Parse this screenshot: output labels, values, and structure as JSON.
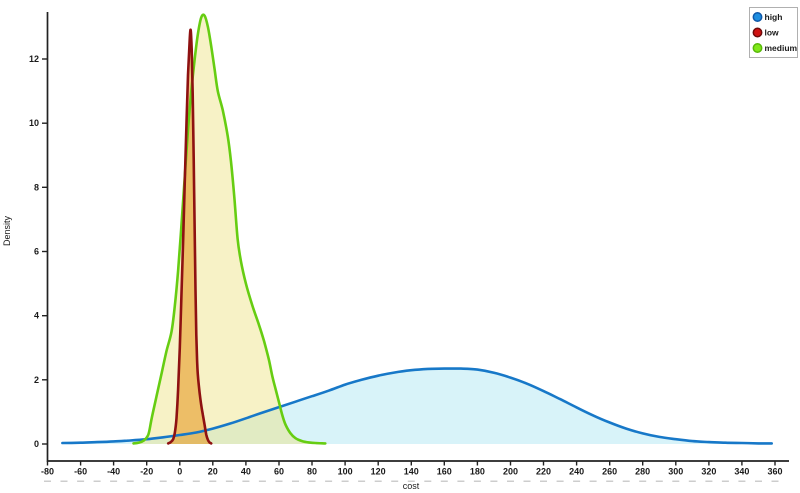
{
  "chart_data": {
    "type": "area",
    "title": "",
    "xlabel": "cost",
    "ylabel": "Density",
    "grid": false,
    "x_axis": {
      "min": -80,
      "max": 360,
      "tick_step": 20,
      "minor_step": 10,
      "ticks": [
        -80,
        -60,
        -40,
        -20,
        0,
        20,
        40,
        60,
        80,
        100,
        120,
        140,
        160,
        180,
        200,
        220,
        240,
        260,
        280,
        300,
        320,
        340,
        360
      ]
    },
    "y_axis": {
      "min": 0,
      "max": 13.8,
      "tick_step": 2,
      "ticks": [
        0,
        2,
        4,
        6,
        8,
        10,
        12
      ]
    },
    "legend": {
      "position": "top-right",
      "entries": [
        {
          "label": "high",
          "dot_color": "#1e8ee0",
          "ring_color": "#0f58a8"
        },
        {
          "label": "low",
          "dot_color": "#d01212",
          "ring_color": "#6e0a0a"
        },
        {
          "label": "medium",
          "dot_color": "#80e81a",
          "ring_color": "#58b808"
        }
      ]
    },
    "axis_color": "#222222",
    "minor_dash_color": "#cdcdcd",
    "series": [
      {
        "name": "high",
        "line_color": "#1778c8",
        "fill_color": "rgba(125,216,235,0.30)",
        "points": [
          [
            -71,
            0.03
          ],
          [
            -60,
            0.04
          ],
          [
            -50,
            0.06
          ],
          [
            -40,
            0.08
          ],
          [
            -30,
            0.11
          ],
          [
            -20,
            0.15
          ],
          [
            -10,
            0.21
          ],
          [
            0,
            0.28
          ],
          [
            10,
            0.36
          ],
          [
            20,
            0.48
          ],
          [
            30,
            0.63
          ],
          [
            40,
            0.8
          ],
          [
            50,
            0.98
          ],
          [
            60,
            1.15
          ],
          [
            70,
            1.32
          ],
          [
            80,
            1.49
          ],
          [
            90,
            1.66
          ],
          [
            100,
            1.85
          ],
          [
            110,
            2.0
          ],
          [
            120,
            2.13
          ],
          [
            130,
            2.23
          ],
          [
            140,
            2.3
          ],
          [
            150,
            2.34
          ],
          [
            160,
            2.35
          ],
          [
            170,
            2.35
          ],
          [
            180,
            2.32
          ],
          [
            190,
            2.22
          ],
          [
            200,
            2.07
          ],
          [
            210,
            1.88
          ],
          [
            220,
            1.65
          ],
          [
            230,
            1.4
          ],
          [
            240,
            1.14
          ],
          [
            250,
            0.89
          ],
          [
            260,
            0.67
          ],
          [
            270,
            0.48
          ],
          [
            280,
            0.33
          ],
          [
            290,
            0.22
          ],
          [
            300,
            0.15
          ],
          [
            310,
            0.09
          ],
          [
            320,
            0.06
          ],
          [
            330,
            0.04
          ],
          [
            340,
            0.03
          ],
          [
            350,
            0.02
          ],
          [
            358,
            0.02
          ]
        ]
      },
      {
        "name": "medium",
        "line_color": "#66cd12",
        "fill_color": "rgba(238,227,128,0.45)",
        "points": [
          [
            -28,
            0.02
          ],
          [
            -25,
            0.04
          ],
          [
            -22,
            0.1
          ],
          [
            -19,
            0.3
          ],
          [
            -17,
            0.8
          ],
          [
            -14,
            1.5
          ],
          [
            -11,
            2.2
          ],
          [
            -8,
            2.9
          ],
          [
            -5,
            3.5
          ],
          [
            -3,
            4.3
          ],
          [
            -1,
            5.4
          ],
          [
            1,
            6.8
          ],
          [
            3,
            8.3
          ],
          [
            5,
            9.8
          ],
          [
            7,
            11.0
          ],
          [
            9,
            12.0
          ],
          [
            11,
            12.8
          ],
          [
            13,
            13.3
          ],
          [
            15,
            13.35
          ],
          [
            17,
            13.0
          ],
          [
            19,
            12.4
          ],
          [
            21,
            11.7
          ],
          [
            23,
            11.0
          ],
          [
            26,
            10.4
          ],
          [
            29,
            9.6
          ],
          [
            31,
            8.8
          ],
          [
            33,
            7.7
          ],
          [
            35,
            6.4
          ],
          [
            37,
            5.7
          ],
          [
            40,
            5.0
          ],
          [
            44,
            4.3
          ],
          [
            48,
            3.7
          ],
          [
            51,
            3.2
          ],
          [
            54,
            2.6
          ],
          [
            56,
            2.1
          ],
          [
            58,
            1.7
          ],
          [
            60,
            1.3
          ],
          [
            62,
            0.9
          ],
          [
            64,
            0.6
          ],
          [
            67,
            0.33
          ],
          [
            70,
            0.18
          ],
          [
            74,
            0.09
          ],
          [
            78,
            0.05
          ],
          [
            82,
            0.03
          ],
          [
            88,
            0.02
          ]
        ]
      },
      {
        "name": "low",
        "line_color": "#8e1111",
        "fill_color": "rgba(230,148,25,0.55)",
        "points": [
          [
            -7,
            0.02
          ],
          [
            -5.5,
            0.06
          ],
          [
            -4,
            0.15
          ],
          [
            -3,
            0.35
          ],
          [
            -2,
            0.8
          ],
          [
            -1,
            1.7
          ],
          [
            0,
            3.0
          ],
          [
            1,
            4.6
          ],
          [
            2,
            6.3
          ],
          [
            3,
            8.1
          ],
          [
            4,
            9.9
          ],
          [
            5,
            11.5
          ],
          [
            6,
            12.6
          ],
          [
            6.6,
            12.9
          ],
          [
            7.2,
            12.3
          ],
          [
            7.8,
            10.9
          ],
          [
            8.4,
            8.9
          ],
          [
            9,
            6.6
          ],
          [
            9.5,
            4.8
          ],
          [
            10,
            3.4
          ],
          [
            10.5,
            2.6
          ],
          [
            11,
            2.1
          ],
          [
            12,
            1.6
          ],
          [
            13,
            1.2
          ],
          [
            14,
            0.9
          ],
          [
            15,
            0.6
          ],
          [
            16,
            0.3
          ],
          [
            17,
            0.13
          ],
          [
            18,
            0.05
          ],
          [
            19,
            0.02
          ]
        ]
      }
    ]
  }
}
